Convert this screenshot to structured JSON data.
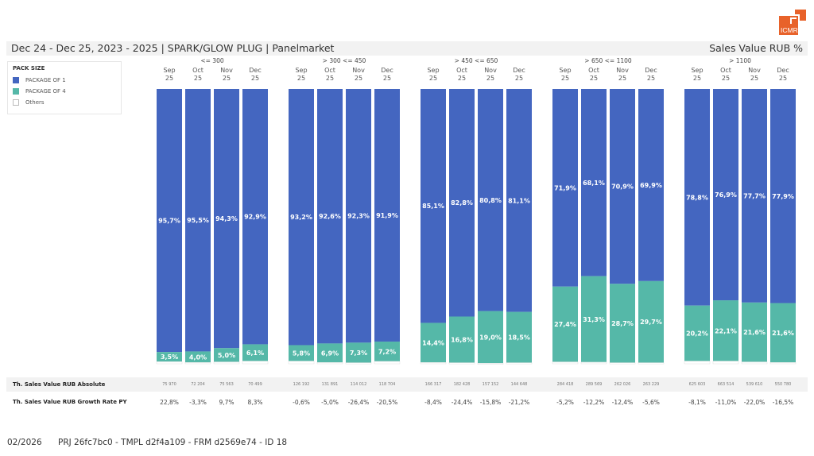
{
  "header": {
    "title": "Dec 24 - Dec 25, 2023 - 2025 | SPARK/GLOW PLUG | Panelmarket",
    "measure": "Sales Value RUB %",
    "logo_text": "ICMR",
    "logo_color": "#e8622a"
  },
  "legend": {
    "title": "PACK SIZE",
    "items": [
      {
        "label": "PACKAGE OF 1",
        "color": "#4466c0"
      },
      {
        "label": "PACKAGE OF 4",
        "color": "#55b8a8"
      },
      {
        "label": "Others",
        "color": "#ffffff"
      }
    ]
  },
  "chart_data": {
    "type": "bar",
    "stacked": true,
    "normalized": true,
    "title": "Sales Value RUB %",
    "ylim": [
      0,
      100
    ],
    "series": [
      {
        "name": "PACKAGE OF 1",
        "color": "#4466c0"
      },
      {
        "name": "PACKAGE OF 4",
        "color": "#55b8a8"
      },
      {
        "name": "Others",
        "color": "#ffffff"
      }
    ],
    "groups": [
      {
        "label": "<= 300",
        "categories": [
          [
            "Sep",
            "25"
          ],
          [
            "Oct",
            "25"
          ],
          [
            "Nov",
            "25"
          ],
          [
            "Dec",
            "25"
          ]
        ],
        "package_of_1": [
          95.7,
          95.5,
          94.3,
          92.9
        ],
        "package_of_4": [
          3.5,
          4.0,
          5.0,
          6.1
        ],
        "labels_1": [
          "95,7%",
          "95,5%",
          "94,3%",
          "92,9%"
        ],
        "labels_4": [
          "3,5%",
          "4,0%",
          "5,0%",
          "6,1%"
        ],
        "abs": [
          "75 970",
          "72 204",
          "75 563",
          "70 499"
        ],
        "growth": [
          "22,8%",
          "-3,3%",
          "9,7%",
          "8,3%"
        ]
      },
      {
        "label": "> 300 <= 450",
        "categories": [
          [
            "Sep",
            "25"
          ],
          [
            "Oct",
            "25"
          ],
          [
            "Nov",
            "25"
          ],
          [
            "Dec",
            "25"
          ]
        ],
        "package_of_1": [
          93.2,
          92.6,
          92.3,
          91.9
        ],
        "package_of_4": [
          5.8,
          6.9,
          7.3,
          7.2
        ],
        "labels_1": [
          "93,2%",
          "92,6%",
          "92,3%",
          "91,9%"
        ],
        "labels_4": [
          "5,8%",
          "6,9%",
          "7,3%",
          "7,2%"
        ],
        "abs": [
          "126 192",
          "131 891",
          "114 012",
          "118 704"
        ],
        "growth": [
          "-0,6%",
          "-5,0%",
          "-26,4%",
          "-20,5%"
        ]
      },
      {
        "label": "> 450 <= 650",
        "categories": [
          [
            "Sep",
            "25"
          ],
          [
            "Oct",
            "25"
          ],
          [
            "Nov",
            "25"
          ],
          [
            "Dec",
            "25"
          ]
        ],
        "package_of_1": [
          85.1,
          82.8,
          80.8,
          81.1
        ],
        "package_of_4": [
          14.4,
          16.8,
          19.0,
          18.5
        ],
        "labels_1": [
          "85,1%",
          "82,8%",
          "80,8%",
          "81,1%"
        ],
        "labels_4": [
          "14,4%",
          "16,8%",
          "19,0%",
          "18,5%"
        ],
        "abs": [
          "166 317",
          "182 428",
          "157 152",
          "144 648"
        ],
        "growth": [
          "-8,4%",
          "-24,4%",
          "-15,8%",
          "-21,2%"
        ]
      },
      {
        "label": "> 650 <= 1100",
        "categories": [
          [
            "Sep",
            "25"
          ],
          [
            "Oct",
            "25"
          ],
          [
            "Nov",
            "25"
          ],
          [
            "Dec",
            "25"
          ]
        ],
        "package_of_1": [
          71.9,
          68.1,
          70.9,
          69.9
        ],
        "package_of_4": [
          27.4,
          31.3,
          28.7,
          29.7
        ],
        "labels_1": [
          "71,9%",
          "68,1%",
          "70,9%",
          "69,9%"
        ],
        "labels_4": [
          "27,4%",
          "31,3%",
          "28,7%",
          "29,7%"
        ],
        "abs": [
          "284 418",
          "289 569",
          "262 026",
          "263 229"
        ],
        "growth": [
          "-5,2%",
          "-12,2%",
          "-12,4%",
          "-5,6%"
        ]
      },
      {
        "label": "> 1100",
        "categories": [
          [
            "Sep",
            "25"
          ],
          [
            "Oct",
            "25"
          ],
          [
            "Nov",
            "25"
          ],
          [
            "Dec",
            "25"
          ]
        ],
        "package_of_1": [
          78.8,
          76.9,
          77.7,
          77.9
        ],
        "package_of_4": [
          20.2,
          22.1,
          21.6,
          21.6
        ],
        "labels_1": [
          "78,8%",
          "76,9%",
          "77,7%",
          "77,9%"
        ],
        "labels_4": [
          "20,2%",
          "22,1%",
          "21,6%",
          "21,6%"
        ],
        "abs": [
          "625 603",
          "663 514",
          "539 610",
          "550 780"
        ],
        "growth": [
          "-8,1%",
          "-11,0%",
          "-22,0%",
          "-16,5%"
        ]
      }
    ]
  },
  "table": {
    "abs_label": "Th. Sales Value RUB Absolute",
    "growth_label": "Th. Sales Value RUB Growth Rate PY"
  },
  "footer": {
    "date": "02/2026",
    "id": "PRJ 26fc7bc0 - TMPL d2f4a109 - FRM d2569e74 - ID 18"
  }
}
